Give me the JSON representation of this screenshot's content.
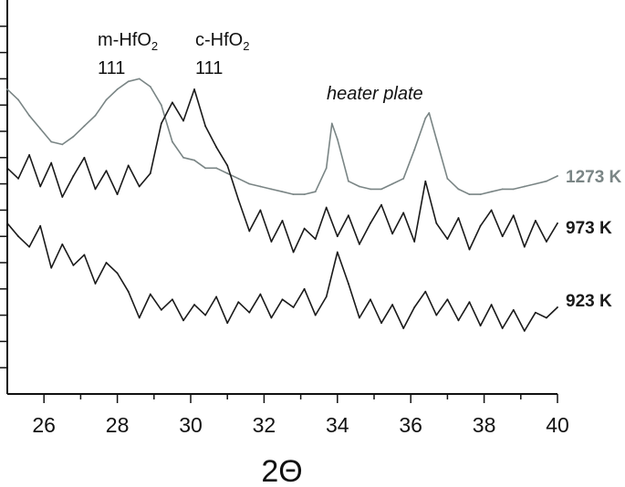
{
  "chart_data": {
    "type": "line",
    "xlabel": "2Θ",
    "ylabel": "",
    "xlim": [
      25,
      40
    ],
    "ylim": [
      0,
      15
    ],
    "y_ticks_labeled": false,
    "x_ticks": [
      "26",
      "28",
      "30",
      "32",
      "34",
      "36",
      "38",
      "40"
    ],
    "annotations": [
      {
        "text": "m-HfO",
        "sub": "2",
        "index": "111",
        "x": 28.0
      },
      {
        "text": "c-HfO",
        "sub": "2",
        "index": "111",
        "x": 30.5
      },
      {
        "text": "heater plate",
        "x": 35.0
      }
    ],
    "colors": {
      "gray": "#7a8585",
      "black": "#1a1a1a"
    },
    "series": [
      {
        "name": "1273 K",
        "color": "#7a8585",
        "x": [
          25.0,
          25.3,
          25.6,
          25.9,
          26.2,
          26.5,
          26.8,
          27.1,
          27.4,
          27.7,
          28.0,
          28.3,
          28.6,
          28.9,
          29.2,
          29.5,
          29.8,
          30.1,
          30.4,
          30.7,
          31.0,
          31.3,
          31.6,
          31.9,
          32.2,
          32.5,
          32.8,
          33.1,
          33.4,
          33.7,
          33.85,
          34.0,
          34.3,
          34.6,
          34.9,
          35.2,
          35.5,
          35.8,
          36.1,
          36.4,
          36.5,
          36.7,
          37.0,
          37.3,
          37.6,
          37.9,
          38.2,
          38.5,
          38.8,
          39.1,
          39.4,
          39.7,
          40.0
        ],
        "y": [
          11.6,
          11.2,
          10.6,
          10.1,
          9.6,
          9.5,
          9.8,
          10.2,
          10.6,
          11.2,
          11.6,
          11.9,
          12.0,
          11.7,
          11.0,
          9.6,
          9.0,
          8.9,
          8.6,
          8.6,
          8.4,
          8.2,
          8.0,
          7.9,
          7.8,
          7.7,
          7.6,
          7.6,
          7.7,
          8.6,
          10.3,
          9.7,
          8.1,
          7.9,
          7.8,
          7.8,
          8.0,
          8.2,
          9.3,
          10.5,
          10.7,
          9.7,
          8.2,
          7.8,
          7.6,
          7.6,
          7.7,
          7.8,
          7.8,
          7.9,
          8.0,
          8.1,
          8.3
        ]
      },
      {
        "name": "973 K",
        "color": "#1a1a1a",
        "x": [
          25.0,
          25.3,
          25.6,
          25.9,
          26.2,
          26.5,
          26.8,
          27.1,
          27.4,
          27.7,
          28.0,
          28.3,
          28.6,
          28.9,
          29.2,
          29.5,
          29.8,
          30.1,
          30.4,
          30.7,
          31.0,
          31.3,
          31.6,
          31.9,
          32.2,
          32.5,
          32.8,
          33.1,
          33.4,
          33.7,
          34.0,
          34.3,
          34.6,
          34.9,
          35.2,
          35.5,
          35.8,
          36.1,
          36.4,
          36.7,
          37.0,
          37.3,
          37.6,
          37.9,
          38.2,
          38.5,
          38.8,
          39.1,
          39.4,
          39.7,
          40.0
        ],
        "y": [
          8.6,
          8.2,
          9.1,
          7.9,
          8.8,
          7.5,
          8.3,
          9.0,
          7.8,
          8.5,
          7.6,
          8.7,
          7.9,
          8.4,
          10.3,
          11.1,
          10.4,
          11.6,
          10.2,
          9.4,
          8.7,
          7.4,
          6.2,
          7.0,
          5.8,
          6.6,
          5.4,
          6.3,
          5.9,
          7.1,
          6.0,
          6.8,
          5.7,
          6.5,
          7.2,
          6.1,
          6.9,
          5.8,
          8.1,
          6.5,
          5.9,
          6.7,
          5.5,
          6.4,
          7.0,
          6.0,
          6.8,
          5.6,
          6.6,
          5.8,
          6.5
        ]
      },
      {
        "name": "923 K",
        "color": "#1a1a1a",
        "x": [
          25.0,
          25.3,
          25.6,
          25.9,
          26.2,
          26.5,
          26.8,
          27.1,
          27.4,
          27.7,
          28.0,
          28.3,
          28.6,
          28.9,
          29.2,
          29.5,
          29.8,
          30.1,
          30.4,
          30.7,
          31.0,
          31.3,
          31.6,
          31.9,
          32.2,
          32.5,
          32.8,
          33.1,
          33.4,
          33.7,
          34.0,
          34.3,
          34.6,
          34.9,
          35.2,
          35.5,
          35.8,
          36.1,
          36.4,
          36.7,
          37.0,
          37.3,
          37.6,
          37.9,
          38.2,
          38.5,
          38.8,
          39.1,
          39.4,
          39.7,
          40.0
        ],
        "y": [
          6.5,
          6.0,
          5.6,
          6.4,
          4.8,
          5.7,
          4.9,
          5.3,
          4.2,
          5.0,
          4.6,
          3.9,
          2.9,
          3.8,
          3.2,
          3.6,
          2.8,
          3.4,
          3.0,
          3.7,
          2.7,
          3.5,
          3.1,
          3.8,
          2.9,
          3.6,
          3.3,
          4.0,
          3.0,
          3.7,
          5.4,
          4.2,
          2.9,
          3.6,
          2.7,
          3.4,
          2.5,
          3.3,
          3.9,
          3.0,
          3.6,
          2.8,
          3.5,
          2.6,
          3.4,
          2.5,
          3.2,
          2.4,
          3.1,
          2.9,
          3.3
        ]
      }
    ]
  }
}
